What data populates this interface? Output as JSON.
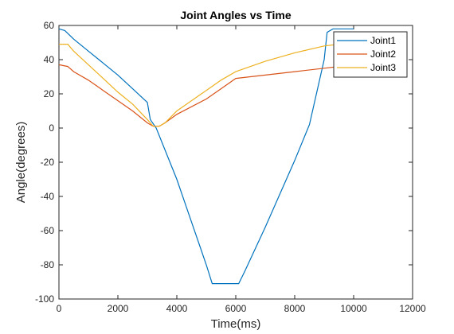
{
  "chart_data": {
    "type": "line",
    "title": "Joint Angles vs Time",
    "xlabel": "Time(ms)",
    "ylabel": "Angle(degrees)",
    "xlim": [
      0,
      12000
    ],
    "ylim": [
      -100,
      60
    ],
    "xticks": [
      0,
      2000,
      4000,
      6000,
      8000,
      10000,
      12000
    ],
    "yticks": [
      -100,
      -80,
      -60,
      -40,
      -20,
      0,
      20,
      40,
      60
    ],
    "grid": false,
    "legend_position": "top-right",
    "series": [
      {
        "name": "Joint1",
        "color": "#0072BD",
        "x": [
          0,
          200,
          500,
          1000,
          1500,
          2000,
          2500,
          3000,
          3100,
          3300,
          4000,
          4500,
          5000,
          5200,
          5500,
          6000,
          6100,
          6300,
          7000,
          8000,
          8500,
          9000,
          9100,
          9300,
          9500,
          9700,
          10000
        ],
        "y": [
          58,
          57,
          52,
          45,
          38,
          31,
          23,
          15,
          5,
          0,
          -30,
          -55,
          -80,
          -91,
          -91,
          -91,
          -91,
          -84,
          -58,
          -19,
          2,
          40,
          56,
          58,
          58,
          58,
          58
        ]
      },
      {
        "name": "Joint2",
        "color": "#D95319",
        "x": [
          0,
          300,
          500,
          1000,
          1500,
          2000,
          2500,
          3000,
          3200,
          3400,
          3600,
          4000,
          5000,
          5500,
          6000,
          7000,
          8000,
          9000,
          9500,
          10000
        ],
        "y": [
          37,
          36,
          33,
          28,
          22,
          16,
          10,
          3,
          1,
          1,
          3,
          8,
          17,
          23,
          29,
          31,
          33,
          35,
          36,
          36
        ]
      },
      {
        "name": "Joint3",
        "color": "#EDB120",
        "x": [
          0,
          300,
          500,
          1000,
          1500,
          2000,
          2500,
          3000,
          3200,
          3400,
          3600,
          4000,
          5000,
          5500,
          6000,
          7000,
          8000,
          9000,
          9500,
          10000
        ],
        "y": [
          49,
          49,
          45,
          37,
          29,
          21,
          14,
          5,
          1,
          1,
          3,
          10,
          22,
          28,
          33,
          39,
          44,
          48,
          49,
          49
        ]
      }
    ]
  }
}
